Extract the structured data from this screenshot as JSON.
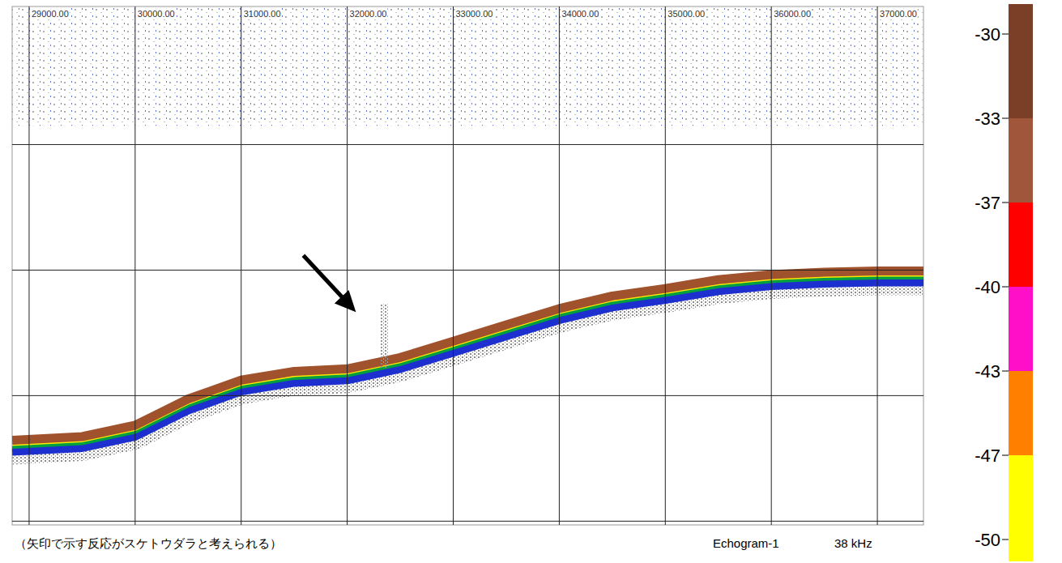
{
  "chart_data": {
    "type": "echogram",
    "caption": "（矢印で示す反応がスケトウダラと考えられる）",
    "echogram_label": "Echogram-1",
    "frequency": "38 kHz",
    "xlim": [
      28840,
      37435
    ],
    "xticks": [
      {
        "value": 29000,
        "label": "29000.00"
      },
      {
        "value": 30000,
        "label": "30000.00"
      },
      {
        "value": 31000,
        "label": "31000.00"
      },
      {
        "value": 32000,
        "label": "32000.00"
      },
      {
        "value": 33000,
        "label": "33000.00"
      },
      {
        "value": 34000,
        "label": "34000.00"
      },
      {
        "value": 35000,
        "label": "35000.00"
      },
      {
        "value": 36000,
        "label": "36000.00"
      },
      {
        "value": 37000,
        "label": "37000.00"
      }
    ],
    "ylim": [
      0,
      4.13
    ],
    "yticks": [
      1.1,
      2.1,
      3.1,
      4.1
    ],
    "grid": true,
    "tick_labels": "x",
    "x": [
      28840,
      29500,
      30000,
      30500,
      31000,
      31500,
      32000,
      32500,
      33000,
      33500,
      34000,
      34500,
      35000,
      35500,
      36000,
      36500,
      37000,
      37435
    ],
    "series": [
      {
        "color": "#a0522d",
        "values": [
          3.45,
          3.42,
          3.33,
          3.12,
          2.97,
          2.9,
          2.88,
          2.79,
          2.66,
          2.53,
          2.4,
          2.3,
          2.24,
          2.17,
          2.13,
          2.11,
          2.1,
          2.1
        ]
      }
    ],
    "surface_layer": [
      0,
      0.95
    ],
    "target": {
      "x": 32350,
      "depth": [
        2.37,
        2.88
      ]
    },
    "colorbar_ticks": [
      -30,
      -33,
      -37,
      -40,
      -43,
      -47,
      -50
    ],
    "colorbar_colors": [
      "#7b3f28",
      "#a0563a",
      "#ff0000",
      "#ff10c8",
      "#ff8000",
      "#ffff00"
    ]
  }
}
